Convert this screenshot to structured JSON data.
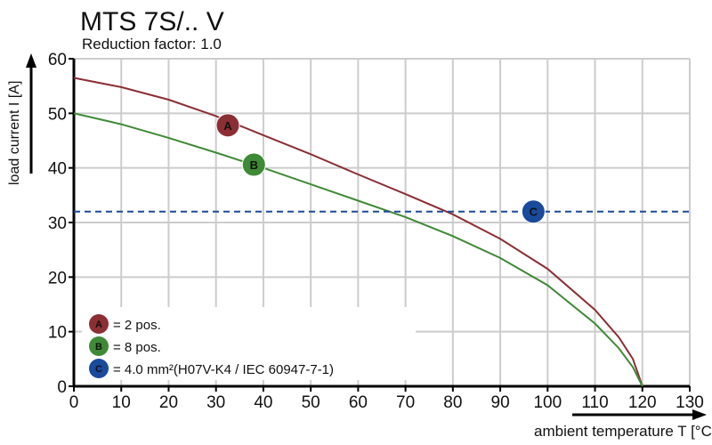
{
  "chart_data": {
    "type": "line",
    "title": "MTS 7S/.. V",
    "subtitle": "Reduction factor: 1.0",
    "xlabel": "ambient temperature T [°C]",
    "ylabel": "load current I [A]",
    "xlim": [
      0,
      130
    ],
    "ylim": [
      0,
      60
    ],
    "xticks": [
      0,
      10,
      20,
      30,
      40,
      50,
      60,
      70,
      80,
      90,
      100,
      110,
      120,
      130
    ],
    "yticks": [
      0,
      10,
      20,
      30,
      40,
      50,
      60
    ],
    "grid": true,
    "legend_placement": "bottom-left",
    "series": [
      {
        "marker": "A",
        "label": "= 2 pos.",
        "color": "#8b2f35",
        "x": [
          0,
          10,
          20,
          30,
          40,
          50,
          60,
          70,
          80,
          90,
          100,
          110,
          115,
          118,
          120
        ],
        "y": [
          56.5,
          54.8,
          52.5,
          49.5,
          46,
          42.5,
          38.8,
          35.2,
          31.5,
          27,
          21.5,
          14,
          9,
          5,
          0
        ],
        "marker_at": [
          32.5,
          47.8
        ]
      },
      {
        "marker": "B",
        "label": "= 8 pos.",
        "color": "#3f8a36",
        "x": [
          0,
          10,
          20,
          30,
          40,
          50,
          60,
          70,
          80,
          90,
          100,
          110,
          115,
          118,
          120
        ],
        "y": [
          50,
          48,
          45.5,
          42.8,
          40,
          37,
          34,
          31,
          27.5,
          23.5,
          18.5,
          11.5,
          7,
          3.5,
          0
        ],
        "marker_at": [
          38,
          40.6
        ]
      },
      {
        "marker": "C",
        "label": "= 4.0 mm²(H07V-K4 / IEC 60947-7-1)",
        "color": "#1a4a9c",
        "style": "dashed",
        "x": [
          0,
          130
        ],
        "y": [
          32,
          32
        ],
        "marker_at": [
          97,
          32
        ]
      }
    ]
  }
}
